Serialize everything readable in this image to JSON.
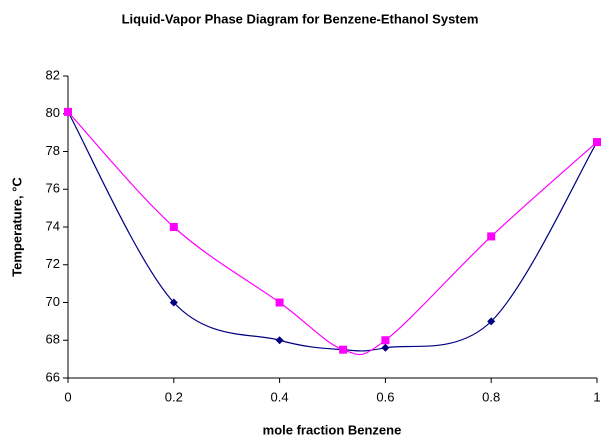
{
  "chart_data": {
    "type": "line",
    "title": "Liquid-Vapor Phase Diagram for Benzene-Ethanol System",
    "x_label": "mole fraction Benzene",
    "y_label": "Temperature, °C",
    "smooth": true,
    "grid": false,
    "xlim": [
      0,
      1
    ],
    "xticks": [
      0,
      0.2,
      0.4,
      0.6,
      0.8,
      1
    ],
    "ylim": [
      66,
      82
    ],
    "yticks": [
      66,
      68,
      70,
      72,
      74,
      76,
      78,
      80,
      82
    ],
    "series": [
      {
        "color": "#000080",
        "marker": "diamond",
        "x": [
          0,
          0.2,
          0.4,
          0.52,
          0.6,
          0.8,
          1
        ],
        "values": [
          80.1,
          70,
          68,
          67.5,
          67.6,
          69,
          78.5
        ]
      },
      {
        "color": "#ff00ff",
        "marker": "square",
        "x": [
          0,
          0.2,
          0.4,
          0.52,
          0.6,
          0.8,
          1
        ],
        "values": [
          80.1,
          74,
          70,
          67.5,
          68,
          73.5,
          78.5
        ]
      }
    ]
  }
}
